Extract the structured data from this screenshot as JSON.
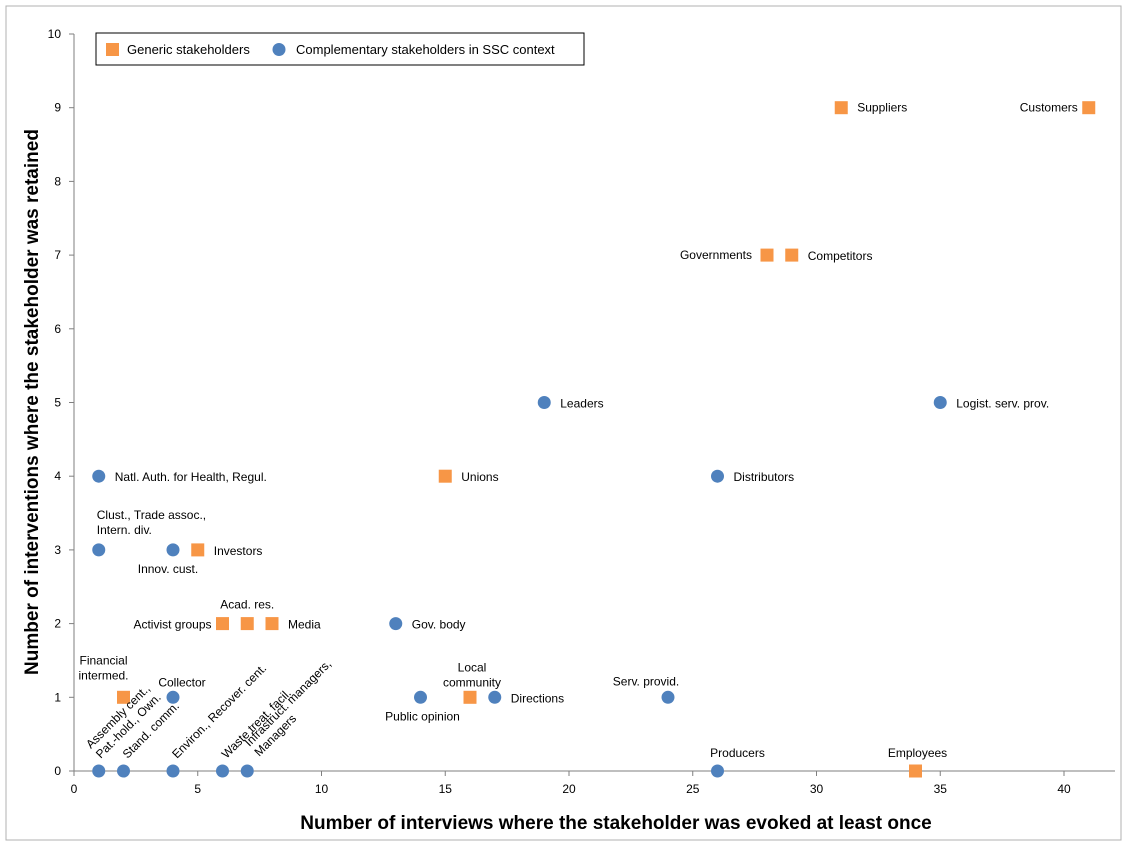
{
  "chart_data": {
    "type": "scatter",
    "xlabel": "Number of interviews where the stakeholder was evoked at least once",
    "ylabel": "Number of interventions where the stakeholder was retained",
    "xlim": [
      0,
      42
    ],
    "ylim": [
      0,
      10
    ],
    "x_ticks": [
      0,
      5,
      10,
      15,
      20,
      25,
      30,
      35,
      40
    ],
    "y_ticks": [
      0,
      1,
      2,
      3,
      4,
      5,
      6,
      7,
      8,
      9,
      10
    ],
    "grid": false,
    "legend_position": "top-left",
    "series": [
      {
        "name": "Generic stakeholders",
        "marker": "square",
        "color": "#f79646",
        "points": [
          {
            "x": 41,
            "y": 9,
            "label": "Customers"
          },
          {
            "x": 31,
            "y": 9,
            "label": "Suppliers"
          },
          {
            "x": 28,
            "y": 7,
            "label": "Governments"
          },
          {
            "x": 29,
            "y": 7,
            "label": "Competitors"
          },
          {
            "x": 15,
            "y": 4,
            "label": "Unions"
          },
          {
            "x": 5,
            "y": 3,
            "label": "Investors"
          },
          {
            "x": 6,
            "y": 2,
            "label": "Activist groups"
          },
          {
            "x": 7,
            "y": 2,
            "label": "Acad. res."
          },
          {
            "x": 8,
            "y": 2,
            "label": "Media"
          },
          {
            "x": 2,
            "y": 1,
            "label": "Financial intermed."
          },
          {
            "x": 16,
            "y": 1,
            "label": "Local community"
          },
          {
            "x": 34,
            "y": 0,
            "label": "Employees"
          }
        ]
      },
      {
        "name": "Complementary stakeholders in SSC context",
        "marker": "circle",
        "color": "#4f81bd",
        "points": [
          {
            "x": 35,
            "y": 5,
            "label": "Logist. serv. prov."
          },
          {
            "x": 19,
            "y": 5,
            "label": "Leaders"
          },
          {
            "x": 26,
            "y": 4,
            "label": "Distributors"
          },
          {
            "x": 1,
            "y": 4,
            "label": "Natl. Auth. for Health, Regul."
          },
          {
            "x": 1,
            "y": 3,
            "label": "Clust., Trade assoc., Intern. div."
          },
          {
            "x": 4,
            "y": 3,
            "label": "Innov. cust."
          },
          {
            "x": 13,
            "y": 2,
            "label": "Gov. body"
          },
          {
            "x": 4,
            "y": 1,
            "label": "Collector"
          },
          {
            "x": 14,
            "y": 1,
            "label": "Public opinion"
          },
          {
            "x": 17,
            "y": 1,
            "label": "Directions"
          },
          {
            "x": 24,
            "y": 1,
            "label": "Serv. provid."
          },
          {
            "x": 26,
            "y": 0,
            "label": "Producers"
          },
          {
            "x": 1,
            "y": 0,
            "label": "Assembly cent., Pat.-hold., Own."
          },
          {
            "x": 2,
            "y": 0,
            "label": "Stand. comm."
          },
          {
            "x": 4,
            "y": 0,
            "label": "Environ., Recover. cent."
          },
          {
            "x": 6,
            "y": 0,
            "label": "Waste treat. facil."
          },
          {
            "x": 7,
            "y": 0,
            "label": "Infrastruct. managers, Managers"
          }
        ]
      }
    ]
  }
}
